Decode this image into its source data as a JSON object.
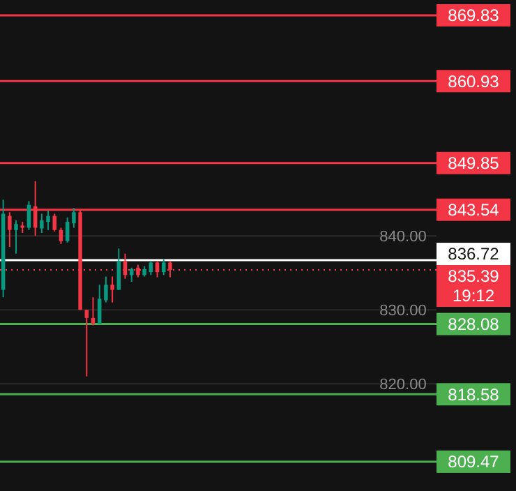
{
  "chart_data": {
    "type": "candlestick",
    "categories": [
      null,
      null,
      null,
      null,
      null,
      null,
      null,
      null,
      null,
      null,
      null,
      null,
      null,
      null,
      null,
      null,
      null,
      null,
      null,
      null,
      null,
      null,
      null,
      null,
      null,
      null,
      null,
      null,
      null,
      null,
      null,
      null,
      null,
      null,
      null,
      null,
      null,
      null,
      null,
      null,
      null,
      null,
      null,
      null,
      null,
      null,
      null,
      null,
      null,
      null,
      null,
      null,
      null,
      null,
      null,
      null,
      null,
      null,
      null,
      null,
      null,
      null,
      null,
      null,
      null,
      null,
      null,
      null
    ],
    "ohlc": [
      [
        832.7,
        844.9,
        831.7,
        843.0
      ],
      [
        842.7,
        843.2,
        838.5,
        840.8
      ],
      [
        840.8,
        842.1,
        837.6,
        841.6
      ],
      [
        841.4,
        841.9,
        840.4,
        841.1
      ],
      [
        841.1,
        844.7,
        840.8,
        844.2
      ],
      [
        844.0,
        847.4,
        840.0,
        841.1
      ],
      [
        841.0,
        843.0,
        840.4,
        842.1
      ],
      [
        841.9,
        843.4,
        840.8,
        842.7
      ],
      [
        842.7,
        843.0,
        840.6,
        840.8
      ],
      [
        840.8,
        841.1,
        838.9,
        839.3
      ],
      [
        839.3,
        842.5,
        839.1,
        841.9
      ],
      [
        841.7,
        843.8,
        841.1,
        843.2
      ],
      [
        843.2,
        843.6,
        830.0,
        830.0
      ],
      [
        830.0,
        830.0,
        821.0,
        828.9
      ],
      [
        828.9,
        831.7,
        827.9,
        828.1
      ],
      [
        828.1,
        833.4,
        828.1,
        831.5
      ],
      [
        831.3,
        834.5,
        831.0,
        833.4
      ],
      [
        833.4,
        834.5,
        831.0,
        832.7
      ],
      [
        832.7,
        838.3,
        832.7,
        836.6
      ],
      [
        836.6,
        837.6,
        834.2,
        834.7
      ],
      [
        834.7,
        835.7,
        833.8,
        835.5
      ],
      [
        835.7,
        836.1,
        834.4,
        834.7
      ],
      [
        834.7,
        835.9,
        834.5,
        835.5
      ],
      [
        835.1,
        836.6,
        834.7,
        836.4
      ],
      [
        836.4,
        836.6,
        834.4,
        835.1
      ],
      [
        835.1,
        836.8,
        834.7,
        836.4
      ],
      [
        836.4,
        836.6,
        834.4,
        835.39
      ],
      null,
      null,
      null,
      null,
      null,
      null,
      null,
      null,
      null,
      null,
      null,
      null,
      null,
      null,
      null,
      null,
      null,
      null,
      null,
      null,
      null,
      null,
      null,
      null,
      null,
      null,
      null,
      null,
      null,
      null,
      null,
      null,
      null,
      null,
      null,
      null,
      null,
      null,
      null,
      null,
      null
    ],
    "colors": [
      "#089981",
      "#f23645",
      "#089981",
      "#f23645",
      "#089981",
      "#f23645",
      "#089981",
      "#089981",
      "#f23645",
      "#f23645",
      "#089981",
      "#089981",
      "#f23645",
      "#f23645",
      "#f23645",
      "#089981",
      "#089981",
      "#f23645",
      "#089981",
      "#f23645",
      "#089981",
      "#f23645",
      "#089981",
      "#089981",
      "#f23645",
      "#089981",
      "#f23645",
      null,
      null,
      null,
      null,
      null,
      null,
      null,
      null,
      null,
      null,
      null,
      null,
      null,
      null,
      null,
      null,
      null,
      null,
      null,
      null,
      null,
      null,
      null,
      null,
      null,
      null,
      null,
      null,
      null,
      null,
      null,
      null,
      null,
      null,
      null,
      null,
      null,
      null,
      null,
      null,
      null
    ],
    "ylim": [
      805.5,
      871.9
    ],
    "yticks": [
      {
        "value": 840,
        "label": "840.00"
      },
      {
        "value": 830,
        "label": "830.00"
      },
      {
        "value": 820,
        "label": "820.00"
      }
    ],
    "tick_labels": "y",
    "grid": "y",
    "ref_lines": [
      {
        "axis": "y",
        "value": 869.83,
        "label": "869.83",
        "color": "#f23645",
        "line_style": "solid"
      },
      {
        "axis": "y",
        "value": 860.93,
        "label": "860.93",
        "color": "#f23645",
        "line_style": "solid"
      },
      {
        "axis": "y",
        "value": 849.85,
        "label": "849.85",
        "color": "#f23645",
        "line_style": "solid"
      },
      {
        "axis": "y",
        "value": 843.54,
        "label": "843.54",
        "color": "#f23645",
        "line_style": "solid"
      },
      {
        "axis": "y",
        "value": 836.72,
        "label": "836.72",
        "color": "#ffffff",
        "line_style": "solid"
      },
      {
        "axis": "y",
        "value": 835.39,
        "label": "835.39",
        "color": "#f23645",
        "line_style": "dotted"
      },
      {
        "axis": "y",
        "value": 828.08,
        "label": "828.08",
        "color": "#4caf50",
        "line_style": "solid"
      },
      {
        "axis": "y",
        "value": 818.58,
        "label": "818.58",
        "color": "#4caf50",
        "line_style": "solid"
      },
      {
        "axis": "y",
        "value": 809.47,
        "label": "809.47",
        "color": "#4caf50",
        "line_style": "solid"
      }
    ],
    "annotations": [
      "19:12"
    ]
  }
}
